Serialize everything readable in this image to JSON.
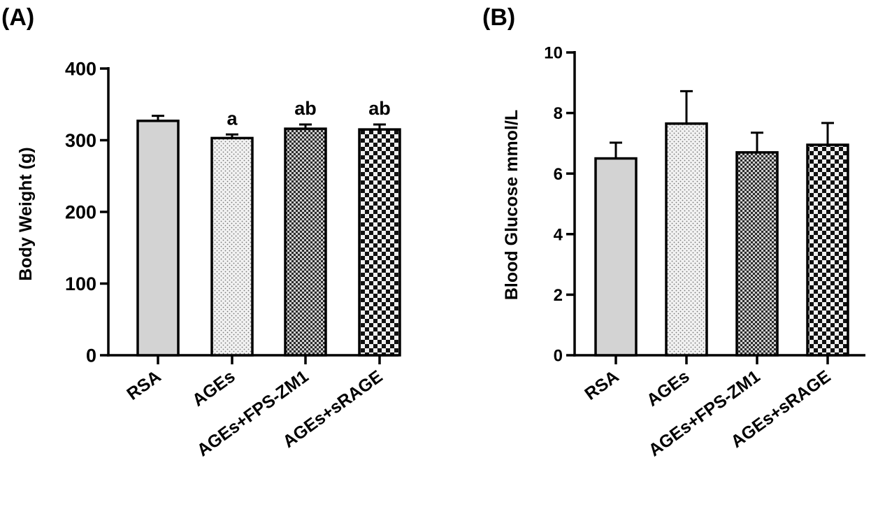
{
  "chart_data": [
    {
      "type": "bar",
      "panel_label": "(A)",
      "title": "",
      "xlabel": "",
      "ylabel": "Body Weight (g)",
      "ylim": [
        0,
        400
      ],
      "yticks": [
        "0",
        "100",
        "200",
        "300",
        "400"
      ],
      "categories": [
        "RSA",
        "AGEs",
        "AGEs+FPS-ZM1",
        "AGEs+sRAGE"
      ],
      "values": [
        327,
        303,
        316,
        315
      ],
      "errors": [
        7,
        5,
        6,
        7
      ],
      "annotations": [
        "",
        "a",
        "ab",
        "ab"
      ],
      "fills": [
        "solid-lightgray",
        "fine-dots",
        "dense-checker",
        "coarse-checker"
      ]
    },
    {
      "type": "bar",
      "panel_label": "(B)",
      "title": "",
      "xlabel": "",
      "ylabel": "Blood Glucose mmol/L",
      "ylim": [
        0,
        10
      ],
      "yticks": [
        "0",
        "2",
        "4",
        "6",
        "8",
        "10"
      ],
      "categories": [
        "RSA",
        "AGEs",
        "AGEs+FPS-ZM1",
        "AGEs+sRAGE"
      ],
      "values": [
        6.5,
        7.65,
        6.7,
        6.95
      ],
      "errors": [
        0.52,
        1.07,
        0.65,
        0.72
      ],
      "annotations": [
        "",
        "",
        "",
        ""
      ],
      "fills": [
        "solid-lightgray",
        "fine-dots",
        "dense-checker",
        "coarse-checker"
      ]
    }
  ],
  "colors": {
    "axis": "#000000",
    "bar_solid": "#d3d3d3",
    "bar_stroke": "#000000"
  }
}
